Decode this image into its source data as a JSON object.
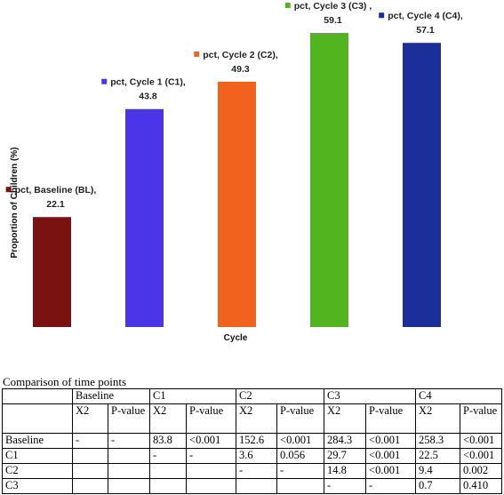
{
  "chart_data": {
    "type": "bar",
    "title": "",
    "xlabel": "Cycle",
    "ylabel": "Proportion of Children (%)",
    "ylim": [
      0,
      65
    ],
    "grid": false,
    "legend": "none",
    "categories": [
      "Baseline (BL)",
      "Cycle 1 (C1)",
      "Cycle 2 (C2)",
      "Cycle 3 (C3)",
      "Cycle 4 (C4)"
    ],
    "values": [
      22.1,
      43.8,
      49.3,
      59.1,
      57.1
    ],
    "colors": [
      "#7b1212",
      "#4a35e8",
      "#f2621f",
      "#52b520",
      "#1b2e9a"
    ],
    "data_labels": [
      {
        "line1": "pct, Baseline (BL),",
        "line2": "22.1"
      },
      {
        "line1": "pct, Cycle 1 (C1),",
        "line2": "43.8"
      },
      {
        "line1": "pct, Cycle 2 (C2),",
        "line2": "49.3"
      },
      {
        "line1": "pct, Cycle 3 (C3) ,",
        "line2": "59.1"
      },
      {
        "line1": "pct, Cycle 4 (C4),",
        "line2": "57.1"
      }
    ]
  },
  "table": {
    "caption": "Comparison of time points",
    "groups": [
      "Baseline",
      "C1",
      "C2",
      "C3",
      "C4"
    ],
    "subheaders": [
      "X2",
      "P-value"
    ],
    "rows": [
      {
        "label": "Baseline",
        "cells": [
          "-",
          "-",
          "83.8",
          "<0.001",
          "152.6",
          "<0.001",
          "284.3",
          "<0.001",
          "258.3",
          "<0.001"
        ]
      },
      {
        "label": "C1",
        "cells": [
          "",
          "",
          "-",
          "-",
          "3.6",
          "0.056",
          "29.7",
          "<0.001",
          "22.5",
          "<0.001"
        ]
      },
      {
        "label": "C2",
        "cells": [
          "",
          "",
          "",
          "",
          "-",
          "-",
          "14.8",
          "<0.001",
          "9.4",
          "0.002"
        ]
      },
      {
        "label": "C3",
        "cells": [
          "",
          "",
          "",
          "",
          "",
          "",
          "-",
          "-",
          "0.7",
          "0.410"
        ]
      }
    ]
  }
}
